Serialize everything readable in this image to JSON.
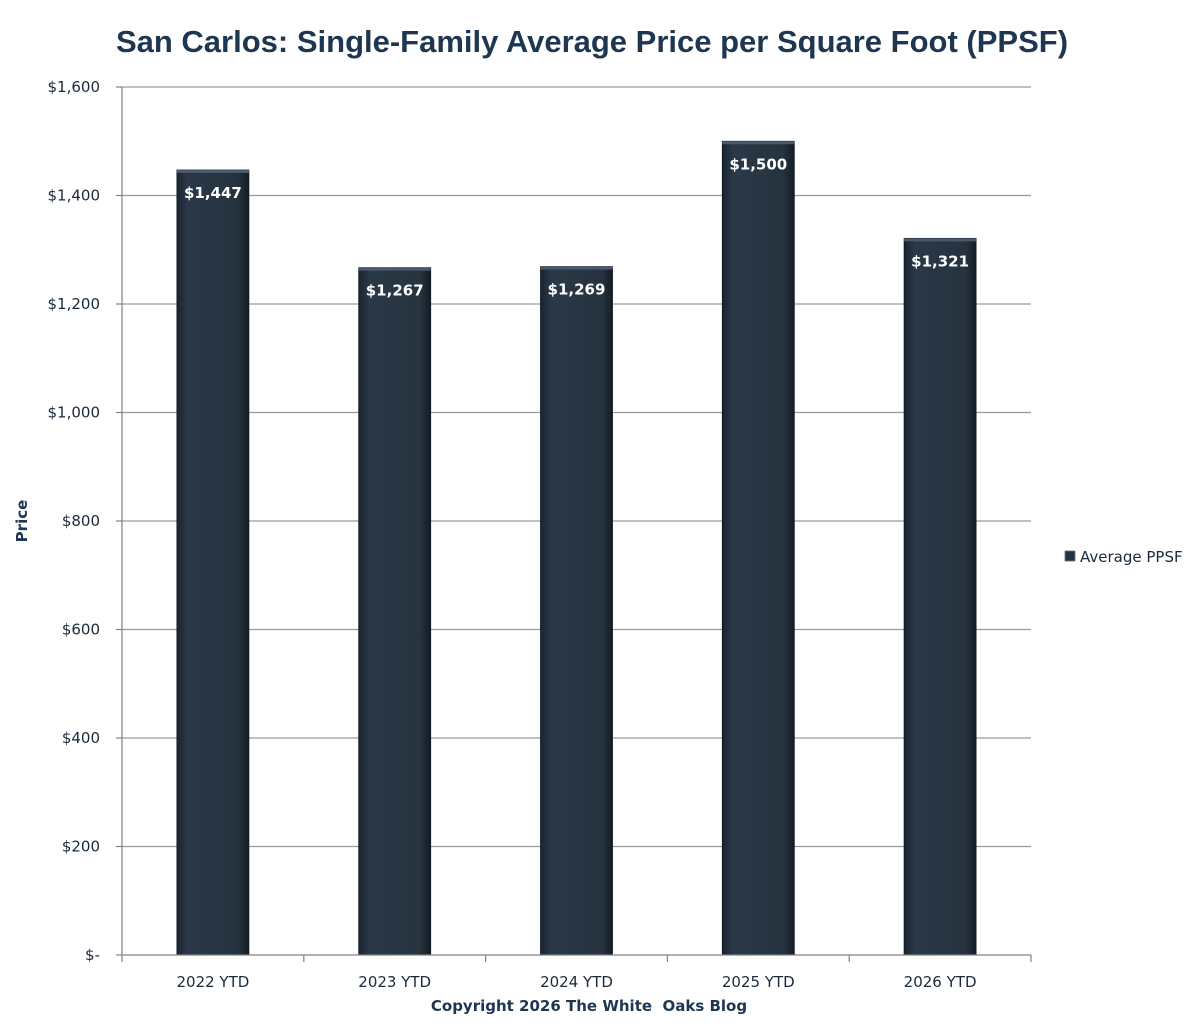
{
  "chart_data": {
    "type": "bar",
    "title": "San Carlos: Single-Family Average Price per Square Foot (PPSF)",
    "xlabel": "Copyright 2026 The White  Oaks Blog",
    "ylabel": "Price",
    "categories": [
      "2022 YTD",
      "2023 YTD",
      "2024 YTD",
      "2025 YTD",
      "2026 YTD"
    ],
    "series": [
      {
        "name": "Average PPSF",
        "values": [
          1447,
          1267,
          1269,
          1500,
          1321
        ],
        "data_labels": [
          "$1,447",
          "$1,267",
          "$1,269",
          "$1,500",
          "$1,321"
        ],
        "color": "#243140"
      }
    ],
    "ylim": [
      0,
      1600
    ],
    "y_ticks": [
      0,
      200,
      400,
      600,
      800,
      1000,
      1200,
      1400,
      1600
    ],
    "y_tick_labels": [
      "$-",
      "$200",
      "$400",
      "$600",
      "$800",
      "$1,000",
      "$1,200",
      "$1,400",
      "$1,600"
    ],
    "grid": true,
    "legend": {
      "position": "right",
      "entries": [
        "Average PPSF"
      ]
    }
  }
}
